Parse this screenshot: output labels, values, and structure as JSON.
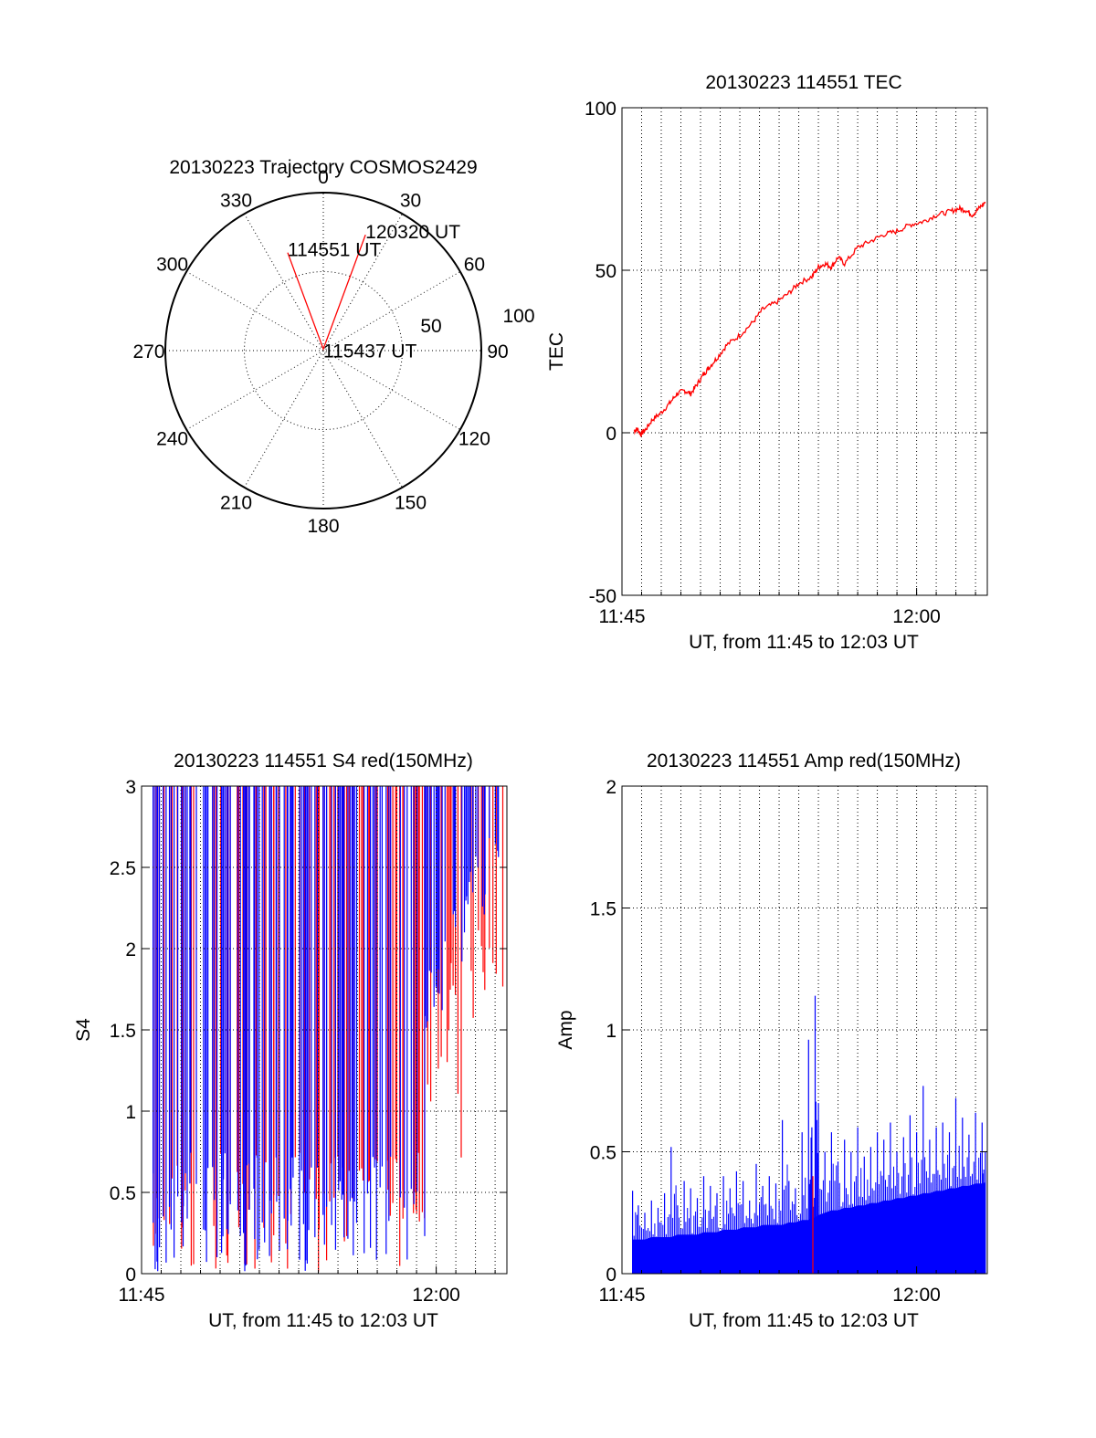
{
  "chart_data": [
    {
      "type": "polar",
      "title": "20130223 Trajectory COSMOS2429",
      "azimuth_labels": [
        "0",
        "30",
        "60",
        "90",
        "120",
        "150",
        "180",
        "210",
        "240",
        "270",
        "300",
        "330"
      ],
      "radial_labels": [
        "50",
        "100"
      ],
      "rlim": [
        0,
        100
      ],
      "grid": true,
      "trajectory": {
        "points": [
          [
            -20,
            66
          ],
          [
            0,
            1
          ],
          [
            20,
            78
          ]
        ],
        "labels": [
          "114551 UT",
          "115437 UT",
          "120320 UT"
        ],
        "color": "#ff0000"
      }
    },
    {
      "type": "line",
      "title": "20130223 114551 TEC",
      "xlabel": "UT, from 11:45 to 12:03 UT",
      "ylabel": "TEC",
      "xlim": [
        11.75,
        12.06
      ],
      "ylim": [
        -50,
        100
      ],
      "x_ticks": [
        11.75,
        12.0
      ],
      "x_tick_labels": [
        "11:45",
        "12:00"
      ],
      "y_ticks": [
        -50,
        0,
        50,
        100
      ],
      "grid": true,
      "series": [
        {
          "color": "#ff0000",
          "x": [
            11.7603,
            11.7631,
            11.7659,
            11.7701,
            11.7757,
            11.7827,
            11.7903,
            11.7966,
            11.8029,
            11.8083,
            11.8139,
            11.8194,
            11.8236,
            11.8306,
            11.8389,
            11.85,
            11.8611,
            11.8694,
            11.8806,
            11.8917,
            11.9,
            11.9111,
            11.9167,
            11.9222,
            11.9278,
            11.9333,
            11.9389,
            11.95,
            11.9611,
            11.9722,
            11.9833,
            11.9944,
            12.0056,
            12.0167,
            12.0278,
            12.0361,
            12.0417,
            12.0472,
            12.0528,
            12.0583
          ],
          "values": [
            0.5,
            1.2,
            -0.5,
            1,
            4,
            6,
            9,
            12,
            13,
            12,
            15,
            18,
            20,
            23,
            27,
            30,
            34,
            38,
            40,
            43,
            46,
            48,
            51,
            52,
            51,
            54,
            52,
            57,
            59,
            61,
            62,
            64,
            65,
            67,
            68,
            69,
            68.5,
            67,
            69,
            71
          ]
        }
      ]
    },
    {
      "type": "bar",
      "title": "20130223 114551 S4 red(150MHz)",
      "xlabel": "UT, from 11:45 to 12:03 UT",
      "ylabel": "S4",
      "xlim": [
        11.75,
        12.06
      ],
      "ylim": [
        0,
        3
      ],
      "x_ticks": [
        11.75,
        12.0
      ],
      "x_tick_labels": [
        "11:45",
        "12:00"
      ],
      "y_ticks": [
        0,
        0.5,
        1,
        1.5,
        2,
        2.5,
        3
      ],
      "grid": true,
      "series": [
        {
          "color": "#ff0000",
          "segments": [
            [
              11.7586,
              11.9903,
              0,
              3
            ],
            [
              11.9903,
              12.0,
              1.0,
              3
            ],
            [
              12.0,
              12.0056,
              0.9,
              3
            ],
            [
              12.0056,
              12.0111,
              1.2,
              3
            ],
            [
              12.0111,
              12.0167,
              1.6,
              3
            ],
            [
              12.0167,
              12.0222,
              0.6,
              3
            ],
            [
              12.0222,
              12.0278,
              1.3,
              3
            ],
            [
              12.0278,
              12.0333,
              1.5,
              3
            ],
            [
              12.0333,
              12.0389,
              1.9,
              3
            ],
            [
              12.0389,
              12.0444,
              1.6,
              3
            ],
            [
              12.0444,
              12.0528,
              1.8,
              3
            ],
            [
              12.0528,
              12.0583,
              1.4,
              3
            ]
          ]
        },
        {
          "color": "#0000ff",
          "segments": [
            [
              11.7586,
              11.9903,
              0,
              3
            ],
            [
              11.9903,
              12.0,
              1.5,
              3
            ],
            [
              12.0,
              12.0056,
              1.6,
              3
            ],
            [
              12.0056,
              12.0111,
              1.9,
              3
            ],
            [
              12.0111,
              12.0167,
              2.0,
              3
            ],
            [
              12.0167,
              12.0222,
              1.8,
              3
            ],
            [
              12.0222,
              12.0278,
              2.1,
              3
            ],
            [
              12.0278,
              12.0333,
              2.3,
              3
            ],
            [
              12.0333,
              12.0389,
              2.5,
              3
            ],
            [
              12.0389,
              12.0444,
              2.2,
              3
            ],
            [
              12.0444,
              12.0528,
              2.6,
              3
            ],
            [
              12.0528,
              12.0583,
              2.5,
              3
            ]
          ]
        }
      ]
    },
    {
      "type": "bar",
      "title": "20130223 114551 Amp red(150MHz)",
      "xlabel": "UT, from 11:45 to 12:03 UT",
      "ylabel": "Amp",
      "xlim": [
        11.75,
        12.06
      ],
      "ylim": [
        0,
        2
      ],
      "x_ticks": [
        11.75,
        12.0
      ],
      "x_tick_labels": [
        "11:45",
        "12:00"
      ],
      "y_ticks": [
        0,
        0.5,
        1,
        1.5,
        2
      ],
      "grid": true,
      "series": [
        {
          "color": "#0000ff",
          "x": [
            11.759,
            11.7639,
            11.7694,
            11.775,
            11.7806,
            11.7861,
            11.7917,
            11.7972,
            11.8028,
            11.8083,
            11.8139,
            11.8194,
            11.825,
            11.8306,
            11.8361,
            11.8417,
            11.8472,
            11.8528,
            11.8583,
            11.8639,
            11.8694,
            11.875,
            11.8806,
            11.8861,
            11.8917,
            11.8972,
            11.9028,
            11.9083,
            11.9111,
            11.9139,
            11.9167,
            11.9222,
            11.9278,
            11.9333,
            11.9389,
            11.9444,
            11.95,
            11.9556,
            11.9611,
            11.9667,
            11.9722,
            11.9778,
            11.9833,
            11.9889,
            11.9944,
            12.0,
            12.0056,
            12.0111,
            12.0167,
            12.0222,
            12.0278,
            12.0333,
            12.0389,
            12.0444,
            12.05,
            12.0556,
            12.0583
          ],
          "values": [
            0.34,
            0.28,
            0.25,
            0.3,
            0.27,
            0.33,
            0.52,
            0.28,
            0.38,
            0.35,
            0.31,
            0.4,
            0.36,
            0.33,
            0.4,
            0.35,
            0.42,
            0.38,
            0.3,
            0.45,
            0.36,
            0.4,
            0.37,
            0.63,
            0.38,
            0.35,
            0.58,
            0.96,
            0.6,
            1.14,
            0.7,
            0.5,
            0.58,
            0.46,
            0.55,
            0.5,
            0.6,
            0.48,
            0.52,
            0.58,
            0.55,
            0.62,
            0.5,
            0.56,
            0.65,
            0.58,
            0.77,
            0.55,
            0.6,
            0.62,
            0.58,
            0.72,
            0.64,
            0.57,
            0.66,
            0.62,
            0.5
          ],
          "floor": [
            0.14,
            0.14,
            0.14,
            0.15,
            0.15,
            0.15,
            0.15,
            0.16,
            0.16,
            0.16,
            0.16,
            0.17,
            0.17,
            0.17,
            0.18,
            0.18,
            0.18,
            0.19,
            0.19,
            0.19,
            0.2,
            0.2,
            0.2,
            0.2,
            0.21,
            0.21,
            0.22,
            0.22,
            0.23,
            0.23,
            0.24,
            0.25,
            0.26,
            0.26,
            0.27,
            0.27,
            0.28,
            0.28,
            0.29,
            0.29,
            0.3,
            0.3,
            0.31,
            0.31,
            0.32,
            0.32,
            0.33,
            0.33,
            0.34,
            0.34,
            0.35,
            0.35,
            0.36,
            0.36,
            0.37,
            0.37,
            0.37
          ]
        },
        {
          "color": "#ff0000",
          "x": [
            11.912
          ],
          "values": [
            0.4
          ]
        }
      ]
    }
  ]
}
